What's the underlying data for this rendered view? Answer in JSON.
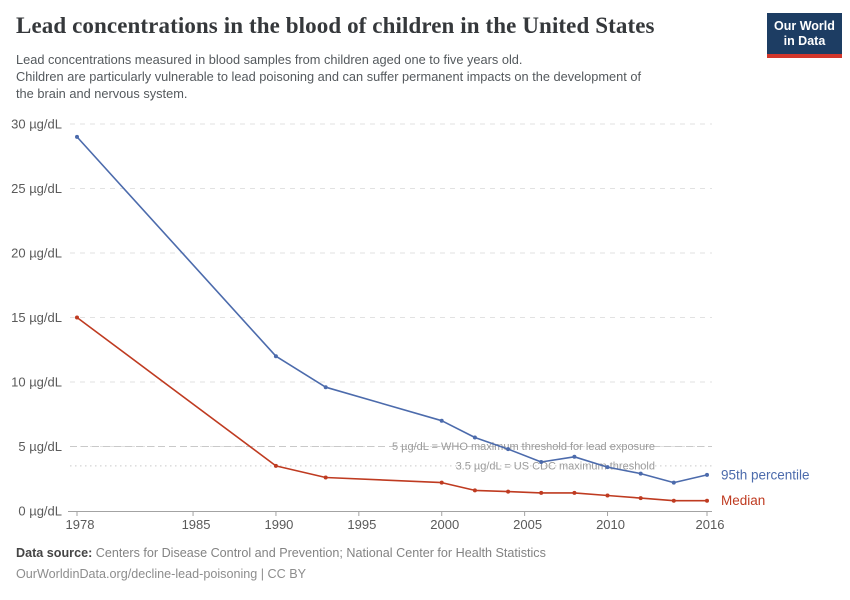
{
  "chart_data": {
    "type": "line",
    "title": "Lead concentrations in the blood of children in the United States",
    "subtitle_lines": [
      "Lead concentrations measured in blood samples from children aged one to five years old.",
      "Children are particularly vulnerable to lead poisoning and can suffer permanent impacts on the development of",
      "the brain and nervous system."
    ],
    "x": [
      1978,
      1990,
      1993,
      2000,
      2002,
      2004,
      2006,
      2008,
      2010,
      2012,
      2014,
      2016
    ],
    "series": [
      {
        "name": "95th percentile",
        "color": "#4c6bac",
        "values": [
          29,
          12,
          9.6,
          7.0,
          5.7,
          4.8,
          3.8,
          4.2,
          3.4,
          2.9,
          2.2,
          2.8
        ]
      },
      {
        "name": "Median",
        "color": "#bf3b21",
        "values": [
          15,
          3.5,
          2.6,
          2.2,
          1.6,
          1.5,
          1.4,
          1.4,
          1.2,
          1.0,
          0.8,
          0.8
        ]
      }
    ],
    "xticks": [
      1978,
      1985,
      1990,
      1995,
      2000,
      2005,
      2010,
      2016
    ],
    "yticks": [
      0,
      5,
      10,
      15,
      20,
      25,
      30
    ],
    "xlim": [
      1978,
      2016
    ],
    "ylim": [
      0,
      30
    ],
    "tick_suffix": " µg/dL",
    "grid": "horizontal-dashed",
    "legend_position": "line-end-labels",
    "annotations": [
      {
        "value": 5,
        "style": "dashed",
        "label": "5 µg/dL = WHO maximum threshold for lead exposure"
      },
      {
        "value": 3.5,
        "style": "dotted",
        "label": "3.5 µg/dL = US CDC maximum threshold"
      }
    ]
  },
  "logo": {
    "line1": "Our World",
    "line2": "in Data",
    "bg_color": "#1d3d63",
    "bar_color": "#d3362b"
  },
  "footer": {
    "source_label": "Data source:",
    "source_text": " Centers for Disease Control and Prevention; National Center for Health Statistics",
    "link_line": "OurWorldinData.org/decline-lead-poisoning | CC BY"
  },
  "colors": {
    "series_blue": "#4c6bac",
    "series_red": "#bf3b21",
    "gridline": "#e2e2e2",
    "threshold_line": "#c9c9c9",
    "threshold_text": "#9c9c9c",
    "axis_line": "#a3a3a3",
    "tick_text": "#5a5a5a"
  }
}
